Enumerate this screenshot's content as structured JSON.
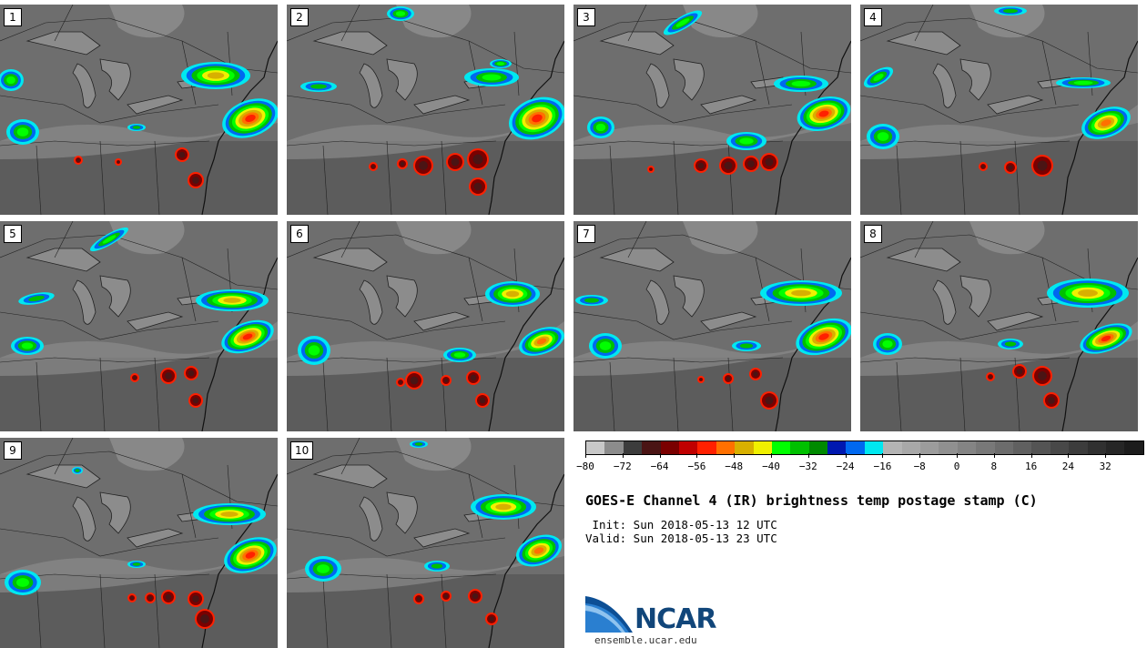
{
  "panels": [
    {
      "label": "1"
    },
    {
      "label": "2"
    },
    {
      "label": "3"
    },
    {
      "label": "4"
    },
    {
      "label": "5"
    },
    {
      "label": "6"
    },
    {
      "label": "7"
    },
    {
      "label": "8"
    },
    {
      "label": "9"
    },
    {
      "label": "10"
    }
  ],
  "colorbar": {
    "colors": [
      "#c8c8c8",
      "#8c8c8c",
      "#3c3c3c",
      "#4a1414",
      "#7a0000",
      "#c00000",
      "#ff2000",
      "#ff7000",
      "#d8b000",
      "#f0f000",
      "#00ff00",
      "#00c000",
      "#008a00",
      "#0018b0",
      "#0068f0",
      "#00e8f0",
      "#b4b4b4",
      "#a8a8a8",
      "#9c9c9c",
      "#909090",
      "#848484",
      "#787878",
      "#6c6c6c",
      "#606060",
      "#545454",
      "#484848",
      "#3c3c3c",
      "#303030",
      "#262626",
      "#1c1c1c"
    ],
    "tick_labels": [
      "−80",
      "−72",
      "−64",
      "−56",
      "−48",
      "−40",
      "−32",
      "−24",
      "−16",
      "−8",
      "0",
      "8",
      "16",
      "24",
      "32"
    ]
  },
  "title": "GOES-E Channel 4 (IR) brightness temp postage stamp (C)",
  "init_line": " Init: Sun 2018-05-13 12 UTC",
  "valid_line": "Valid: Sun 2018-05-13 23 UTC",
  "logo_text": "NCAR",
  "website": "ensemble.ucar.edu"
}
